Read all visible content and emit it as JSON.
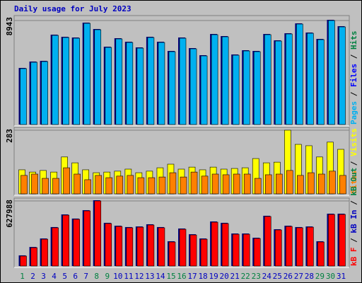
{
  "chart_data": [
    {
      "type": "bar",
      "title": "Daily usage for July 2023",
      "ylim": [
        0,
        8943
      ],
      "yticks": [
        8943
      ],
      "series": [
        {
          "name": "Pages",
          "color": "#00b0f0",
          "values": [
            4806,
            5354,
            5415,
            7666,
            7483,
            7422,
            8700,
            8152,
            6631,
            7361,
            7057,
            6570,
            7483,
            7057,
            6266,
            7422,
            6510,
            5901,
            7726,
            7544,
            5962,
            6327,
            6266,
            7726,
            7179,
            7787,
            8639,
            7848,
            7300,
            8943,
            8395
          ]
        },
        {
          "name": "Files",
          "color": "#0000ff"
        },
        {
          "name": "Hits",
          "color": "#008040"
        }
      ]
    },
    {
      "type": "bar",
      "ylim": [
        0,
        283
      ],
      "yticks": [
        283
      ],
      "series": [
        {
          "name": "Sites",
          "color": "#ff8000",
          "values": [
            82,
            88,
            69,
            69,
            116,
            88,
            63,
            82,
            72,
            79,
            82,
            72,
            72,
            75,
            94,
            75,
            97,
            79,
            88,
            85,
            88,
            88,
            69,
            85,
            88,
            104,
            82,
            94,
            88,
            101,
            82
          ]
        },
        {
          "name": "Visits",
          "color": "#ffff00",
          "values": [
            107,
            97,
            104,
            97,
            164,
            138,
            107,
            94,
            97,
            101,
            110,
            94,
            101,
            116,
            132,
            110,
            119,
            107,
            119,
            110,
            113,
            116,
            157,
            138,
            141,
            283,
            220,
            214,
            164,
            230,
            198
          ]
        }
      ]
    },
    {
      "type": "bar",
      "ylim": [
        0,
        627988
      ],
      "yticks": [
        627988
      ],
      "categories": [
        "1",
        "2",
        "3",
        "4",
        "5",
        "6",
        "7",
        "8",
        "9",
        "10",
        "11",
        "12",
        "13",
        "14",
        "15",
        "16",
        "17",
        "18",
        "19",
        "20",
        "21",
        "22",
        "23",
        "24",
        "25",
        "26",
        "27",
        "28",
        "29",
        "30",
        "31"
      ],
      "category_colors": [
        "#008040",
        "#0000c0",
        "#0000c0",
        "#0000c0",
        "#0000c0",
        "#0000c0",
        "#0000c0",
        "#008040",
        "#008040",
        "#0000c0",
        "#0000c0",
        "#0000c0",
        "#0000c0",
        "#0000c0",
        "#008040",
        "#008040",
        "#0000c0",
        "#0000c0",
        "#0000c0",
        "#0000c0",
        "#0000c0",
        "#008040",
        "#008040",
        "#0000c0",
        "#0000c0",
        "#0000c0",
        "#0000c0",
        "#0000c0",
        "#008040",
        "#008040",
        "#0000c0"
      ],
      "series": [
        {
          "name": "kB F",
          "color": "#ff0000",
          "values": [
            96000,
            177000,
            259000,
            369000,
            491000,
            451000,
            532000,
            627988,
            410000,
            382000,
            369000,
            375000,
            396000,
            369000,
            232000,
            355000,
            300000,
            259000,
            423000,
            410000,
            307000,
            307000,
            266000,
            478000,
            348000,
            382000,
            369000,
            375000,
            232000,
            498000,
            498000
          ]
        },
        {
          "name": "kB In",
          "color": "#0000c0"
        },
        {
          "name": "kB Out",
          "color": "#008040"
        }
      ]
    }
  ],
  "legend_separator": " / "
}
